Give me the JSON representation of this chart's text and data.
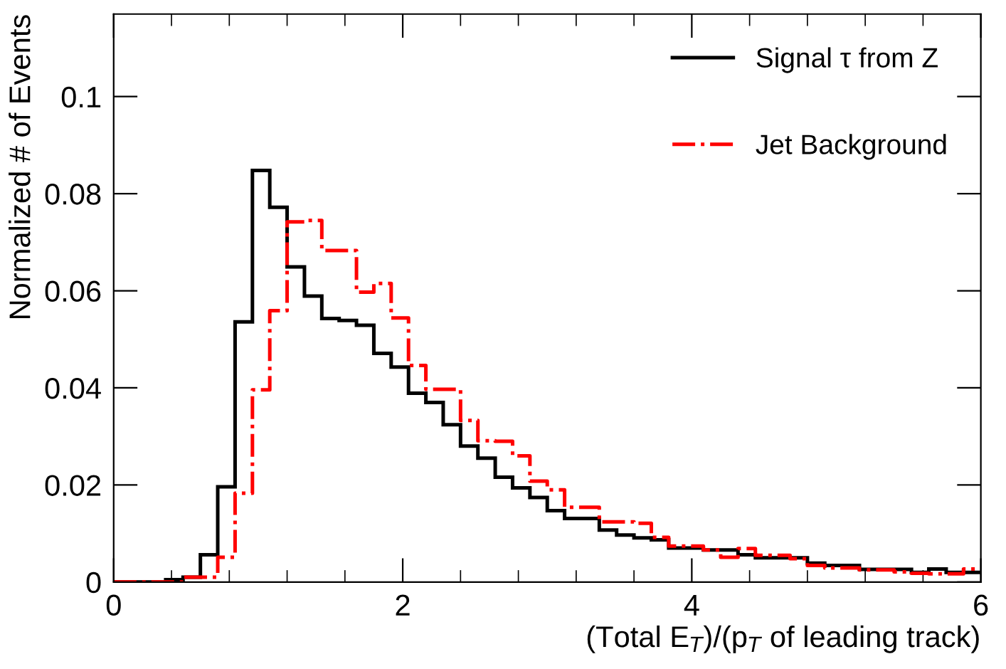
{
  "chart_data": {
    "type": "histogram",
    "xlabel": "(Total E$_{T}$)/(p$_{T}$ of leading track)",
    "ylabel": "Normalized # of Events",
    "bins": [
      0,
      0.12,
      0.24,
      0.36,
      0.48,
      0.6,
      0.72,
      0.84,
      0.96,
      1.08,
      1.2,
      1.32,
      1.44,
      1.56,
      1.68,
      1.8,
      1.92,
      2.04,
      2.16,
      2.28,
      2.4,
      2.52,
      2.64,
      2.76,
      2.88,
      3,
      3.12,
      3.24,
      3.36,
      3.48,
      3.6,
      3.72,
      3.84,
      3.96,
      4.08,
      4.2,
      4.32,
      4.44,
      4.56,
      4.68,
      4.8,
      4.92,
      5.04,
      5.16,
      5.28,
      5.4,
      5.52,
      5.64,
      5.76,
      5.88,
      6
    ],
    "series": [
      {
        "name": "Signal τ from Z",
        "color": "#000000",
        "line_style": "solid",
        "values": [
          0,
          0,
          0,
          0.0005,
          0.001,
          0.0056,
          0.0196,
          0.0536,
          0.0848,
          0.0772,
          0.0649,
          0.0589,
          0.0543,
          0.0539,
          0.0529,
          0.0471,
          0.0443,
          0.0389,
          0.037,
          0.0324,
          0.028,
          0.0255,
          0.0216,
          0.0194,
          0.0174,
          0.0147,
          0.0131,
          0.0131,
          0.0107,
          0.0097,
          0.0091,
          0.0087,
          0.007,
          0.007,
          0.0066,
          0.0066,
          0.0056,
          0.005,
          0.005,
          0.005,
          0.0039,
          0.0034,
          0.0034,
          0.0026,
          0.0026,
          0.0026,
          0.002,
          0.0027,
          0.002,
          0.002
        ]
      },
      {
        "name": "Jet Background",
        "color": "#ff0000",
        "line_style": "dashdot",
        "values": [
          0,
          0,
          0,
          0,
          0.001,
          0.001,
          0.0051,
          0.0183,
          0.0396,
          0.0559,
          0.0742,
          0.0745,
          0.0683,
          0.0683,
          0.0597,
          0.0615,
          0.0544,
          0.0446,
          0.0397,
          0.0397,
          0.0333,
          0.0291,
          0.029,
          0.026,
          0.0208,
          0.019,
          0.0154,
          0.0154,
          0.0124,
          0.0124,
          0.0121,
          0.0092,
          0.0074,
          0.0074,
          0.0066,
          0.0051,
          0.0069,
          0.0055,
          0.0055,
          0.0048,
          0.0034,
          0.0029,
          0.0029,
          0.0025,
          0.0025,
          0.0021,
          0.0018,
          0.0017,
          0.0017,
          0.0027
        ]
      }
    ],
    "xlim": [
      0,
      6
    ],
    "xticks": [
      0,
      2,
      4,
      6
    ],
    "ylim": [
      0,
      0.117
    ],
    "yticks": [
      0,
      0.02,
      0.04,
      0.06,
      0.08,
      0.1
    ],
    "grid": false,
    "legend": "top right"
  }
}
